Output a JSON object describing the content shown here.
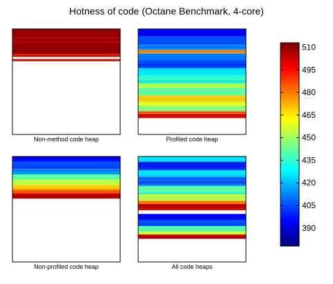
{
  "chart_data": {
    "type": "heatmap",
    "title": "Hotness of code (Octane Benchmark, 4-core)",
    "panels": [
      {
        "caption": "Non-method code heap",
        "fill_fraction": 0.305,
        "bands": [
          {
            "from": 0.0,
            "to": 0.24,
            "value": 510
          },
          {
            "from": 0.24,
            "to": 0.245,
            "value": 480
          },
          {
            "from": 0.245,
            "to": 0.265,
            "value": 508
          },
          {
            "from": 0.265,
            "to": 0.285,
            "value": null
          },
          {
            "from": 0.285,
            "to": 0.305,
            "value": 506
          }
        ]
      },
      {
        "caption": "Profiled code heap",
        "fill_fraction": 0.845,
        "bands": [
          {
            "from": 0.0,
            "to": 0.07,
            "value": 395
          },
          {
            "from": 0.07,
            "to": 0.15,
            "value": 405
          },
          {
            "from": 0.15,
            "to": 0.2,
            "value": 415
          },
          {
            "from": 0.2,
            "to": 0.23,
            "value": 480
          },
          {
            "from": 0.23,
            "to": 0.29,
            "value": 410
          },
          {
            "from": 0.29,
            "to": 0.37,
            "value": 405
          },
          {
            "from": 0.37,
            "to": 0.44,
            "value": 425
          },
          {
            "from": 0.44,
            "to": 0.52,
            "value": 435
          },
          {
            "from": 0.52,
            "to": 0.56,
            "value": 455
          },
          {
            "from": 0.56,
            "to": 0.63,
            "value": 440
          },
          {
            "from": 0.63,
            "to": 0.69,
            "value": 470
          },
          {
            "from": 0.69,
            "to": 0.73,
            "value": 460
          },
          {
            "from": 0.73,
            "to": 0.78,
            "value": 445
          },
          {
            "from": 0.78,
            "to": 0.81,
            "value": 490
          },
          {
            "from": 0.81,
            "to": 0.845,
            "value": 505
          }
        ]
      },
      {
        "caption": "Non-profiled code heap",
        "fill_fraction": 0.4,
        "bands": [
          {
            "from": 0.0,
            "to": 0.05,
            "value": 395
          },
          {
            "from": 0.05,
            "to": 0.12,
            "value": 405
          },
          {
            "from": 0.12,
            "to": 0.17,
            "value": 415
          },
          {
            "from": 0.17,
            "to": 0.22,
            "value": 440
          },
          {
            "from": 0.22,
            "to": 0.27,
            "value": 455
          },
          {
            "from": 0.27,
            "to": 0.31,
            "value": 470
          },
          {
            "from": 0.31,
            "to": 0.35,
            "value": 485
          },
          {
            "from": 0.35,
            "to": 0.4,
            "value": 505
          }
        ]
      },
      {
        "caption": "All code heaps",
        "fill_fraction": 0.78,
        "bands": [
          {
            "from": 0.0,
            "to": 0.05,
            "value": 425
          },
          {
            "from": 0.05,
            "to": 0.13,
            "value": 400
          },
          {
            "from": 0.13,
            "to": 0.2,
            "value": 425
          },
          {
            "from": 0.2,
            "to": 0.28,
            "value": 410
          },
          {
            "from": 0.28,
            "to": 0.36,
            "value": 440
          },
          {
            "from": 0.36,
            "to": 0.42,
            "value": 455
          },
          {
            "from": 0.42,
            "to": 0.45,
            "value": 480
          },
          {
            "from": 0.45,
            "to": 0.51,
            "value": 505
          },
          {
            "from": 0.51,
            "to": 0.545,
            "value": null
          },
          {
            "from": 0.545,
            "to": 0.6,
            "value": 395
          },
          {
            "from": 0.6,
            "to": 0.66,
            "value": 405
          },
          {
            "from": 0.66,
            "to": 0.71,
            "value": 440
          },
          {
            "from": 0.71,
            "to": 0.74,
            "value": 455
          },
          {
            "from": 0.74,
            "to": 0.78,
            "value": 505
          }
        ]
      }
    ],
    "colorbar": {
      "colormap": "jet",
      "range": [
        378,
        513
      ],
      "ticks": [
        390,
        405,
        420,
        435,
        450,
        465,
        480,
        495,
        510
      ]
    }
  }
}
